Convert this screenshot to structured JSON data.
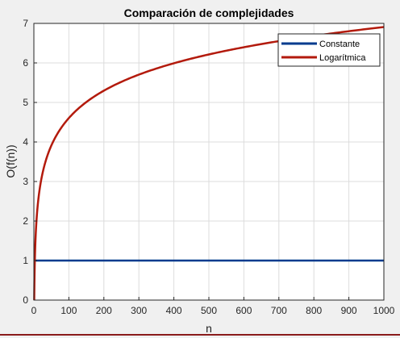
{
  "chart_data": {
    "type": "line",
    "title": "Comparación de complejidades",
    "xlabel": "n",
    "ylabel": "O(f(n))",
    "xlim": [
      0,
      1000
    ],
    "ylim": [
      0,
      7
    ],
    "xticks": [
      0,
      100,
      200,
      300,
      400,
      500,
      600,
      700,
      800,
      900,
      1000
    ],
    "yticks": [
      0,
      1,
      2,
      3,
      4,
      5,
      6,
      7
    ],
    "grid": true,
    "legend_position": "top-right",
    "series": [
      {
        "name": "Constante",
        "color": "#003b8e",
        "function": "constant",
        "value": 1,
        "x_start": 1,
        "x_end": 1000
      },
      {
        "name": "Logarítmica",
        "color": "#b31a0c",
        "function": "natural-log",
        "x_start": 1,
        "x_end": 1000,
        "sample_points": [
          [
            1,
            0
          ],
          [
            10,
            2.3
          ],
          [
            50,
            3.91
          ],
          [
            100,
            4.61
          ],
          [
            200,
            5.3
          ],
          [
            300,
            5.7
          ],
          [
            400,
            5.99
          ],
          [
            500,
            6.21
          ],
          [
            600,
            6.4
          ],
          [
            700,
            6.55
          ],
          [
            800,
            6.68
          ],
          [
            900,
            6.8
          ],
          [
            1000,
            6.91
          ]
        ]
      }
    ]
  }
}
